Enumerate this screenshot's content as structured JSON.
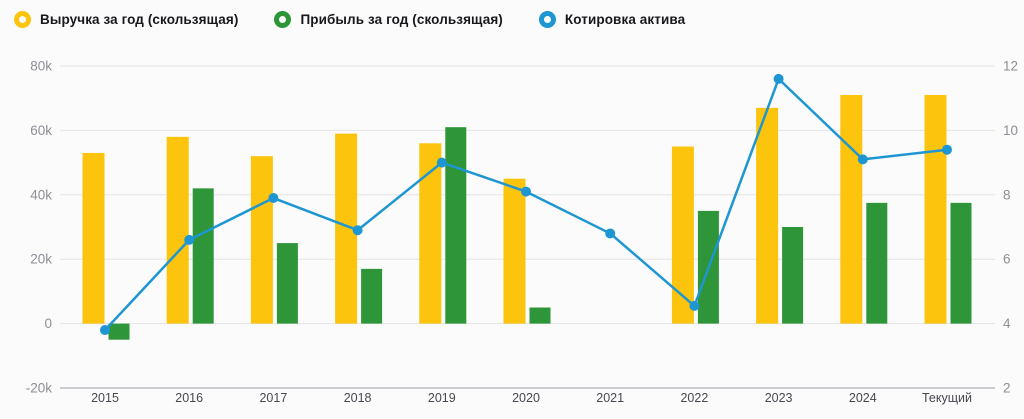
{
  "chart_data": {
    "type": "combo",
    "title": "",
    "categories": [
      "2015",
      "2016",
      "2017",
      "2018",
      "2019",
      "2020",
      "2021",
      "2022",
      "2023",
      "2024",
      "Текущий"
    ],
    "series": [
      {
        "name": "Выручка за год (скользящая)",
        "type": "bar",
        "axis": "left",
        "color": "#FCC40D",
        "values": [
          53000,
          58000,
          52000,
          59000,
          56000,
          45000,
          null,
          55000,
          67000,
          71000,
          71000
        ]
      },
      {
        "name": "Прибыль за год (скользящая)",
        "type": "bar",
        "axis": "left",
        "color": "#2E9538",
        "values": [
          -5000,
          42000,
          25000,
          17000,
          61000,
          5000,
          null,
          35000,
          30000,
          37500,
          37500
        ]
      },
      {
        "name": "Котировка актива",
        "type": "line",
        "axis": "right",
        "color": "#1E96D1",
        "values": [
          3.8,
          6.6,
          7.9,
          6.9,
          9.0,
          8.1,
          6.8,
          4.55,
          11.6,
          9.1,
          9.4
        ]
      }
    ],
    "left_axis": {
      "ticks": [
        "80k",
        "60k",
        "40k",
        "20k",
        "0",
        "-20k"
      ],
      "tick_values": [
        80000,
        60000,
        40000,
        20000,
        0,
        -20000
      ],
      "min": -20000,
      "max": 80000
    },
    "right_axis": {
      "ticks": [
        "12",
        "10",
        "8",
        "6",
        "4",
        "2"
      ],
      "tick_values": [
        12,
        10,
        8,
        6,
        4,
        2
      ],
      "min": 2,
      "max": 12
    },
    "grid": true,
    "legend_position": "top-left",
    "colors": {
      "background": "#fbfbfb",
      "gridline": "#e4e4e8",
      "axis_line": "#bcbcc3",
      "y_tick_text": "#8e8e96",
      "x_tick_text": "#47474f",
      "legend_text": "#17171d"
    }
  }
}
